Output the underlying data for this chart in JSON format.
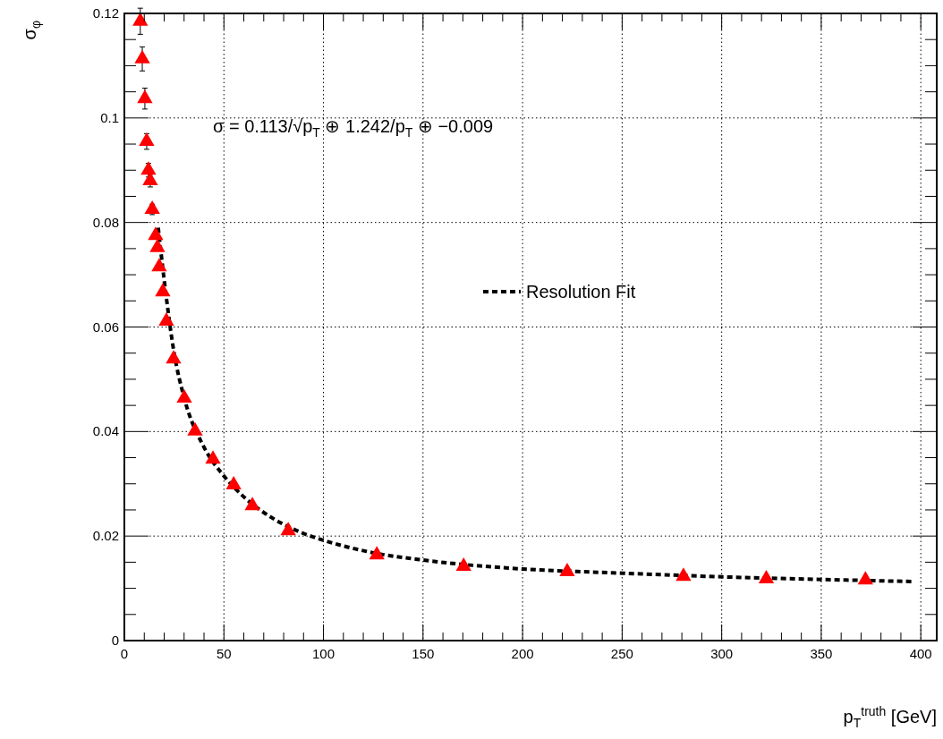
{
  "chart_data": {
    "type": "scatter",
    "xlabel": "p$_{T}$$^{truth}$ [GeV]",
    "ylabel": "σ$_{φ}$",
    "annotations": [
      "σ = 0.113/√p$_{T}$ ⊕ 1.242/p$_{T}$ ⊕ −0.009"
    ],
    "xlim": [
      0,
      408
    ],
    "ylim": [
      0,
      0.12
    ],
    "xticks": [
      0,
      {
        "value": 10,
        "label": null
      },
      {
        "value": 20,
        "label": null
      },
      {
        "value": 30,
        "label": null
      },
      {
        "value": 40,
        "label": null
      },
      50,
      {
        "value": 60,
        "label": null
      },
      {
        "value": 70,
        "label": null
      },
      {
        "value": 80,
        "label": null
      },
      {
        "value": 90,
        "label": null
      },
      100,
      {
        "value": 110,
        "label": null
      },
      {
        "value": 120,
        "label": null
      },
      {
        "value": 130,
        "label": null
      },
      {
        "value": 140,
        "label": null
      },
      150,
      {
        "value": 160,
        "label": null
      },
      {
        "value": 170,
        "label": null
      },
      {
        "value": 180,
        "label": null
      },
      {
        "value": 190,
        "label": null
      },
      200,
      {
        "value": 210,
        "label": null
      },
      {
        "value": 220,
        "label": null
      },
      {
        "value": 230,
        "label": null
      },
      {
        "value": 240,
        "label": null
      },
      250,
      {
        "value": 260,
        "label": null
      },
      {
        "value": 270,
        "label": null
      },
      {
        "value": 280,
        "label": null
      },
      {
        "value": 290,
        "label": null
      },
      300,
      {
        "value": 310,
        "label": null
      },
      {
        "value": 320,
        "label": null
      },
      {
        "value": 330,
        "label": null
      },
      {
        "value": 340,
        "label": null
      },
      350,
      {
        "value": 360,
        "label": null
      },
      {
        "value": 370,
        "label": null
      },
      {
        "value": 380,
        "label": null
      },
      {
        "value": 390,
        "label": null
      },
      400
    ],
    "yticks": [
      0,
      {
        "value": 0.005,
        "label": null
      },
      {
        "value": 0.01,
        "label": null
      },
      {
        "value": 0.015,
        "label": null
      },
      0.02,
      {
        "value": 0.025,
        "label": null
      },
      {
        "value": 0.03,
        "label": null
      },
      {
        "value": 0.035,
        "label": null
      },
      0.04,
      {
        "value": 0.045,
        "label": null
      },
      {
        "value": 0.05,
        "label": null
      },
      {
        "value": 0.055,
        "label": null
      },
      0.06,
      {
        "value": 0.065,
        "label": null
      },
      {
        "value": 0.07,
        "label": null
      },
      {
        "value": 0.075,
        "label": null
      },
      0.08,
      {
        "value": 0.085,
        "label": null
      },
      {
        "value": 0.09,
        "label": null
      },
      {
        "value": 0.095,
        "label": null
      },
      0.1,
      {
        "value": 0.105,
        "label": null
      },
      {
        "value": 0.11,
        "label": null
      },
      {
        "value": 0.115,
        "label": null
      },
      0.12
    ],
    "grid": true,
    "legend": "right",
    "series": [
      {
        "color": "#ff0000",
        "marker": "triangle",
        "x": [
          8.0,
          9.0,
          10.3,
          11.2,
          12.1,
          13.0,
          14.0,
          15.7,
          16.6,
          17.5,
          19.3,
          21.1,
          24.7,
          30.1,
          35.5,
          44.5,
          54.9,
          64.3,
          82.3,
          126.8,
          170.4,
          222.4,
          280.8,
          322.4,
          372.2
        ],
        "values": [
          0.1185,
          0.1113,
          0.1037,
          0.0955,
          0.09,
          0.088,
          0.0825,
          0.0775,
          0.0752,
          0.0715,
          0.0667,
          0.0611,
          0.0539,
          0.0464,
          0.0401,
          0.0347,
          0.0298,
          0.0258,
          0.021,
          0.0164,
          0.0142,
          0.0132,
          0.0123,
          0.0118,
          0.0116
        ],
        "errors": [
          0.0025,
          0.0023,
          0.002,
          0.0015,
          0.0013,
          0.0012,
          0.001,
          null,
          null,
          null,
          null,
          null,
          null,
          null,
          null,
          null,
          null,
          null,
          null,
          null,
          null,
          null,
          null,
          null,
          null
        ]
      },
      {
        "type": "line",
        "name": "Resolution Fit",
        "color": "#000000",
        "marker": "none",
        "line_style": "dashed",
        "x": [
          17,
          20,
          25,
          30,
          40,
          50,
          60,
          75,
          90,
          100,
          125,
          150,
          175,
          200,
          250,
          300,
          350,
          396
        ],
        "values": [
          0.079,
          0.069,
          0.055,
          0.0465,
          0.037,
          0.0315,
          0.0275,
          0.0233,
          0.0205,
          0.0192,
          0.0168,
          0.0154,
          0.0144,
          0.0137,
          0.0129,
          0.0122,
          0.0117,
          0.0113
        ]
      }
    ]
  }
}
